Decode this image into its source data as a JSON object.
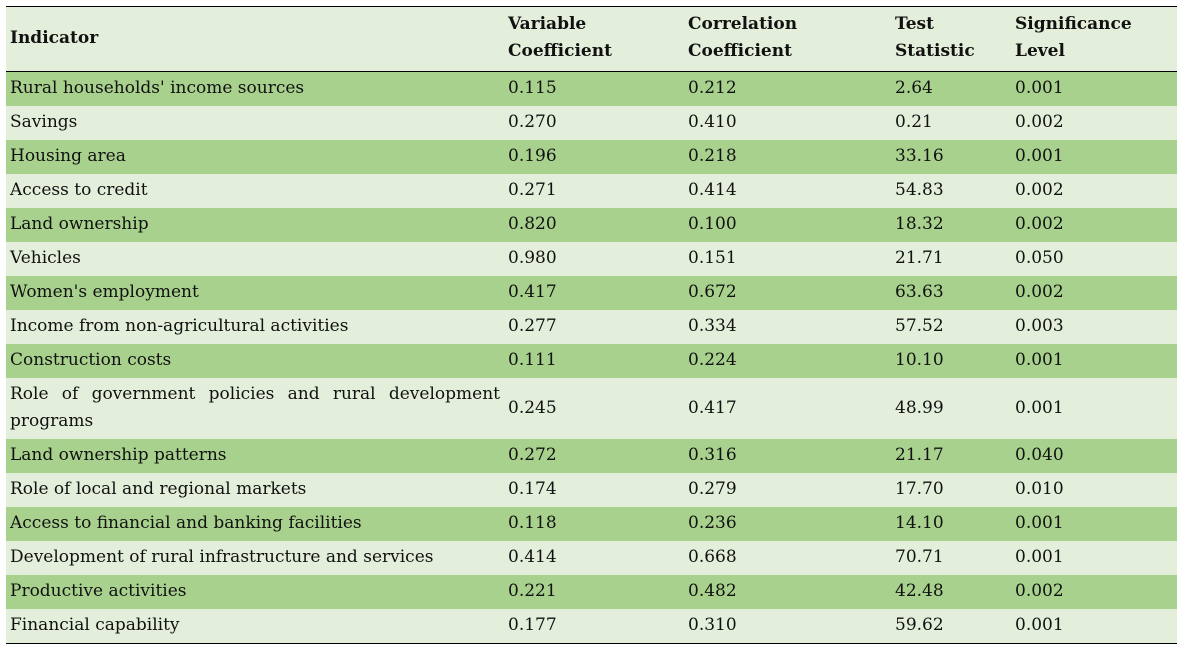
{
  "table": {
    "headers": [
      "Indicator",
      "Variable\nCoefficient",
      "Correlation\nCoefficient",
      "Test\nStatistic",
      "Significance\nLevel"
    ],
    "header_lines": [
      [
        "Indicator"
      ],
      [
        "Variable",
        "Coefficient"
      ],
      [
        "Correlation",
        "Coefficient"
      ],
      [
        "Test",
        "Statistic"
      ],
      [
        "Significance",
        "Level"
      ]
    ],
    "rows": [
      [
        "Rural households' income sources",
        "0.115",
        "0.212",
        "2.64",
        "0.001"
      ],
      [
        "Savings",
        "0.270",
        "0.410",
        "0.21",
        "0.002"
      ],
      [
        "Housing area",
        "0.196",
        "0.218",
        "33.16",
        "0.001"
      ],
      [
        "Access to credit",
        "0.271",
        "0.414",
        "54.83",
        "0.002"
      ],
      [
        "Land ownership",
        "0.820",
        "0.100",
        "18.32",
        "0.002"
      ],
      [
        "Vehicles",
        "0.980",
        "0.151",
        "21.71",
        "0.050"
      ],
      [
        "Women's employment",
        "0.417",
        "0.672",
        "63.63",
        "0.002"
      ],
      [
        "Income from non-agricultural activities",
        "0.277",
        "0.334",
        "57.52",
        "0.003"
      ],
      [
        "Construction costs",
        "0.111",
        "0.224",
        "10.10",
        "0.001"
      ],
      [
        "Role of government policies and rural development programs",
        "0.245",
        "0.417",
        "48.99",
        "0.001"
      ],
      [
        "Land ownership patterns",
        "0.272",
        "0.316",
        "21.17",
        "0.040"
      ],
      [
        "Role of local and regional markets",
        "0.174",
        "0.279",
        "17.70",
        "0.010"
      ],
      [
        "Access to financial and banking facilities",
        "0.118",
        "0.236",
        "14.10",
        "0.001"
      ],
      [
        "Development of rural infrastructure and services",
        "0.414",
        "0.668",
        "70.71",
        "0.001"
      ],
      [
        "Productive activities",
        "0.221",
        "0.482",
        "42.48",
        "0.002"
      ],
      [
        "Financial capability",
        "0.177",
        "0.310",
        "59.62",
        "0.001"
      ]
    ]
  },
  "colors": {
    "row_band_dark": "#a8d18d",
    "row_band_light": "#e3efda",
    "rule": "#000000"
  }
}
